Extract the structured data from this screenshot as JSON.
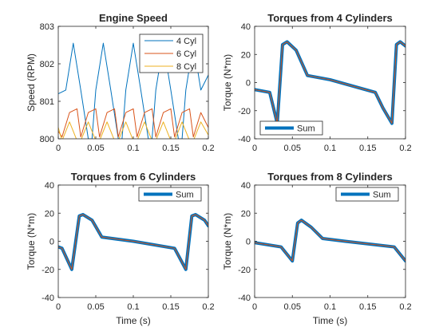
{
  "chart_data": [
    {
      "type": "line",
      "title": "Engine Speed",
      "xlabel": "",
      "ylabel": "Speed (RPM)",
      "xlim": [
        0,
        0.2
      ],
      "ylim": [
        800,
        803
      ],
      "xticks": [
        0,
        0.05,
        0.1,
        0.15,
        0.2
      ],
      "xtick_labels": [
        "0",
        "0.05",
        "0.1",
        "0.15",
        "0.2"
      ],
      "yticks": [
        800,
        801,
        802,
        803
      ],
      "ytick_labels": [
        "800",
        "801",
        "802",
        "803"
      ],
      "legend": "top-right",
      "series": [
        {
          "name": "4 Cyl",
          "color": "#0072BD",
          "linewidth": 1,
          "x": [
            0,
            0.01,
            0.02,
            0.03,
            0.04,
            0.045,
            0.05,
            0.06,
            0.07,
            0.08,
            0.085,
            0.09,
            0.1,
            0.11,
            0.12,
            0.125,
            0.13,
            0.14,
            0.15,
            0.16,
            0.165,
            0.17,
            0.18,
            0.19,
            0.2
          ],
          "y": [
            801.2,
            801.3,
            802.55,
            801.3,
            800.0,
            800.0,
            801.3,
            802.55,
            801.3,
            800.0,
            800.0,
            801.3,
            802.55,
            801.3,
            800.0,
            800.0,
            801.3,
            802.55,
            801.3,
            800.0,
            800.0,
            801.3,
            802.55,
            801.3,
            801.7
          ]
        },
        {
          "name": "6 Cyl",
          "color": "#D95319",
          "linewidth": 1,
          "x": [
            0,
            0.005,
            0.015,
            0.025,
            0.03,
            0.04,
            0.05,
            0.055,
            0.065,
            0.075,
            0.08,
            0.09,
            0.1,
            0.105,
            0.115,
            0.125,
            0.13,
            0.14,
            0.15,
            0.155,
            0.165,
            0.175,
            0.18,
            0.19,
            0.2
          ],
          "y": [
            800.2,
            800.05,
            800.7,
            800.8,
            800.05,
            800.7,
            800.8,
            800.05,
            800.7,
            800.8,
            800.05,
            800.7,
            800.8,
            800.05,
            800.7,
            800.8,
            800.05,
            800.7,
            800.8,
            800.05,
            800.7,
            800.8,
            800.05,
            800.7,
            800.3
          ]
        },
        {
          "name": "8 Cyl",
          "color": "#EDB120",
          "linewidth": 1,
          "x": [
            0,
            0.005,
            0.015,
            0.025,
            0.03,
            0.04,
            0.05,
            0.055,
            0.065,
            0.075,
            0.08,
            0.09,
            0.1,
            0.105,
            0.115,
            0.125,
            0.13,
            0.14,
            0.15,
            0.155,
            0.165,
            0.175,
            0.18,
            0.19,
            0.2
          ],
          "y": [
            800.3,
            799.95,
            800.45,
            799.95,
            799.95,
            800.45,
            799.95,
            799.95,
            800.45,
            799.95,
            799.95,
            800.45,
            799.95,
            799.95,
            800.45,
            799.95,
            799.95,
            800.45,
            799.95,
            799.95,
            800.45,
            799.95,
            799.95,
            800.45,
            800.1
          ]
        }
      ]
    },
    {
      "type": "line",
      "title": "Torques from 4 Cylinders",
      "xlabel": "",
      "ylabel": "Torque (N*m)",
      "xlim": [
        0,
        0.2
      ],
      "ylim": [
        -40,
        40
      ],
      "xticks": [
        0,
        0.05,
        0.1,
        0.15,
        0.2
      ],
      "xtick_labels": [
        "0",
        "0.05",
        "0.1",
        "0.15",
        "0.2"
      ],
      "yticks": [
        -40,
        -20,
        0,
        20,
        40
      ],
      "ytick_labels": [
        "-40",
        "-20",
        "0",
        "20",
        "40"
      ],
      "legend": "bottom-left",
      "series": [
        {
          "name": "Sum",
          "color": "#0072BD",
          "linewidth": 4,
          "inner_color": "#D95319",
          "x": [
            0,
            0.02,
            0.03,
            0.037,
            0.043,
            0.055,
            0.07,
            0.1,
            0.16,
            0.17,
            0.182,
            0.188,
            0.193,
            0.2
          ],
          "y": [
            -5,
            -7,
            -29,
            27,
            29,
            23,
            5,
            2,
            -7,
            -18,
            -29,
            27,
            29,
            26
          ]
        }
      ]
    },
    {
      "type": "line",
      "title": "Torques from 6 Cylinders",
      "xlabel": "Time (s)",
      "ylabel": "Torque (N*m)",
      "xlim": [
        0,
        0.2
      ],
      "ylim": [
        -40,
        40
      ],
      "xticks": [
        0,
        0.05,
        0.1,
        0.15,
        0.2
      ],
      "xtick_labels": [
        "0",
        "0.05",
        "0.1",
        "0.15",
        "0.2"
      ],
      "yticks": [
        -40,
        -20,
        0,
        20,
        40
      ],
      "ytick_labels": [
        "-40",
        "-20",
        "0",
        "20",
        "40"
      ],
      "legend": "top-right",
      "series": [
        {
          "name": "Sum",
          "color": "#0072BD",
          "linewidth": 4,
          "inner_color": "#D95319",
          "x": [
            0,
            0.005,
            0.018,
            0.028,
            0.033,
            0.045,
            0.058,
            0.1,
            0.155,
            0.17,
            0.178,
            0.183,
            0.195,
            0.2
          ],
          "y": [
            -4,
            -5,
            -20,
            18,
            19,
            15,
            3,
            0,
            -5,
            -20,
            18,
            19,
            15,
            11
          ]
        }
      ]
    },
    {
      "type": "line",
      "title": "Torques from 8 Cylinders",
      "xlabel": "Time (s)",
      "ylabel": "Torque (N*m)",
      "xlim": [
        0,
        0.2
      ],
      "ylim": [
        -40,
        40
      ],
      "xticks": [
        0,
        0.05,
        0.1,
        0.15,
        0.2
      ],
      "xtick_labels": [
        "0",
        "0.05",
        "0.1",
        "0.15",
        "0.2"
      ],
      "yticks": [
        -40,
        -20,
        0,
        20,
        40
      ],
      "ytick_labels": [
        "-40",
        "-20",
        "0",
        "20",
        "40"
      ],
      "legend": "top-right",
      "series": [
        {
          "name": "Sum",
          "color": "#0072BD",
          "linewidth": 4,
          "inner_color": "#D95319",
          "x": [
            0,
            0.035,
            0.05,
            0.057,
            0.062,
            0.075,
            0.09,
            0.12,
            0.185,
            0.2
          ],
          "y": [
            -1,
            -4,
            -14,
            13,
            15,
            10,
            2,
            0,
            -4,
            -14
          ]
        }
      ]
    }
  ]
}
